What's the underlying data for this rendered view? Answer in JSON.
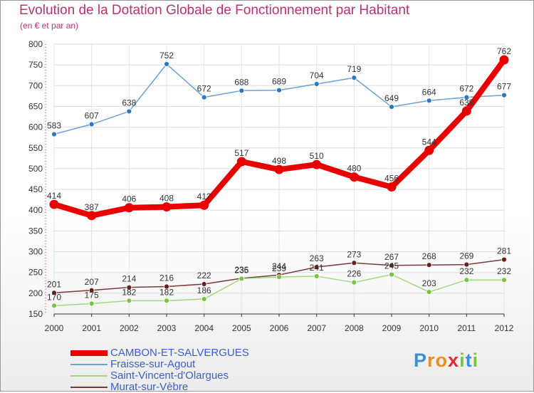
{
  "title": "Evolution de la Dotation Globale de Fonctionnement par Habitant",
  "subtitle": "(en € et par an)",
  "logo_text": "Proxiti",
  "colors": {
    "title": "#c0306e",
    "legend_text": "#3d5ed0",
    "axis_text": "#333333",
    "grid": "#dddddd"
  },
  "chart_data": {
    "type": "line",
    "title": "Evolution de la Dotation Globale de Fonctionnement par Habitant",
    "subtitle": "(en € et par an)",
    "x": [
      2000,
      2001,
      2002,
      2003,
      2004,
      2005,
      2006,
      2007,
      2008,
      2009,
      2010,
      2011,
      2012
    ],
    "x_tick_labels": [
      "2000",
      "2001",
      "2002",
      "2003",
      "2004",
      "2005",
      "2006",
      "2007",
      "2008",
      "2009",
      "2010",
      "2011",
      "2012"
    ],
    "ylim": [
      150,
      800
    ],
    "y_ticks": [
      150,
      200,
      250,
      300,
      350,
      400,
      450,
      500,
      550,
      600,
      650,
      700,
      750,
      800
    ],
    "y_tick_labels": [
      "150",
      "200",
      "250",
      "300",
      "350",
      "400",
      "450",
      "500",
      "550",
      "600",
      "650",
      "700",
      "750",
      "800"
    ],
    "grid": true,
    "legend_position": "bottom-left",
    "series": [
      {
        "name": "CAMBON-ET-SALVERGUES",
        "color": "#e80000",
        "marker_color": "#e80000",
        "values": [
          414,
          387,
          406,
          408,
          412,
          517,
          498,
          510,
          480,
          456,
          544,
          639,
          762
        ],
        "labels": [
          "414",
          "387",
          "406",
          "408",
          "412",
          "517",
          "498",
          "510",
          "480",
          "456",
          "544",
          "639",
          "762"
        ]
      },
      {
        "name": "Fraisse-sur-Agout",
        "color": "#6aa2d6",
        "marker_color": "#2a78c0",
        "values": [
          583,
          607,
          638,
          752,
          672,
          688,
          689,
          704,
          719,
          649,
          664,
          672,
          677
        ],
        "labels": [
          "583",
          "607",
          "638",
          "752",
          "672",
          "688",
          "689",
          "704",
          "719",
          "649",
          "664",
          "672",
          "677"
        ]
      },
      {
        "name": "Saint-Vincent-d'Olargues",
        "color": "#a4d880",
        "marker_color": "#7cc242",
        "values": [
          170,
          175,
          182,
          182,
          186,
          235,
          239,
          241,
          226,
          245,
          203,
          232,
          232
        ],
        "labels": [
          "170",
          "175",
          "182",
          "182",
          "186",
          "235",
          "239",
          "241",
          "226",
          "245",
          "203",
          "232",
          "232"
        ]
      },
      {
        "name": "Murat-sur-Vèbre",
        "color": "#7a3a3a",
        "marker_color": "#6a1f1f",
        "values": [
          201,
          207,
          214,
          216,
          222,
          236,
          244,
          263,
          273,
          267,
          268,
          269,
          281
        ],
        "labels": [
          "201",
          "207",
          "214",
          "216",
          "222",
          "236",
          "244",
          "263",
          "273",
          "267",
          "268",
          "269",
          "281"
        ]
      }
    ]
  },
  "legend": {
    "items": [
      {
        "label": "CAMBON-ET-SALVERGUES",
        "color": "#e80000"
      },
      {
        "label": "Fraisse-sur-Agout",
        "color": "#6aa2d6"
      },
      {
        "label": "Saint-Vincent-d'Olargues",
        "color": "#a4d880"
      },
      {
        "label": "Murat-sur-Vèbre",
        "color": "#7a3a3a"
      }
    ]
  }
}
